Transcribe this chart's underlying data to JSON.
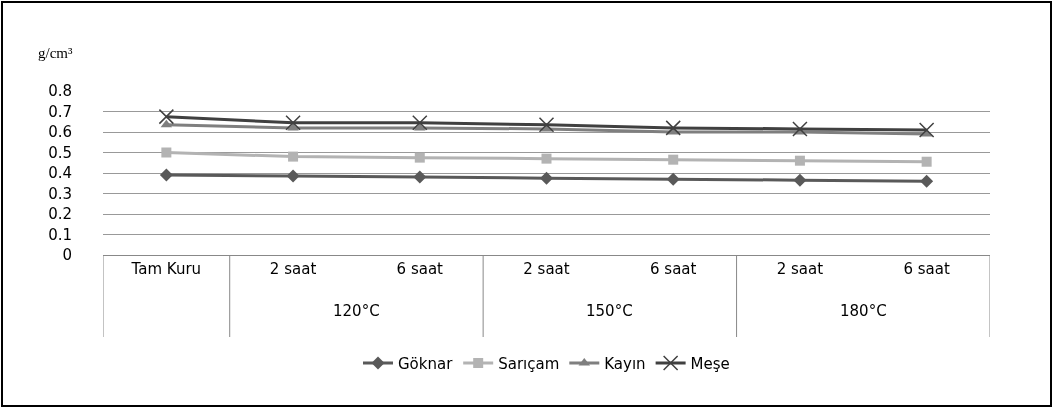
{
  "chart_data": {
    "type": "line",
    "ylabel": "g/cm³",
    "categories": [
      "Tam Kuru",
      "2 saat",
      "6 saat",
      "2 saat",
      "6 saat",
      "2 saat",
      "6 saat"
    ],
    "series": [
      {
        "name": "Göknar",
        "color": "#595959",
        "marker": "diamond",
        "values": [
          0.39,
          0.385,
          0.38,
          0.375,
          0.37,
          0.365,
          0.36
        ]
      },
      {
        "name": "Sarıçam",
        "color": "#b3b3b3",
        "marker": "square",
        "values": [
          0.5,
          0.48,
          0.475,
          0.47,
          0.465,
          0.46,
          0.455
        ]
      },
      {
        "name": "Kayın",
        "color": "#7f7f7f",
        "marker": "triangle",
        "values": [
          0.635,
          0.62,
          0.62,
          0.615,
          0.6,
          0.6,
          0.59
        ]
      },
      {
        "name": "Meşe",
        "color": "#404040",
        "marker": "cross",
        "values": [
          0.675,
          0.645,
          0.645,
          0.635,
          0.62,
          0.615,
          0.61
        ]
      }
    ],
    "annotations": [
      "120°C",
      "150°C",
      "180°C"
    ],
    "ylim": [
      0,
      0.8
    ],
    "yticks": [
      0,
      0.1,
      0.2,
      0.3,
      0.4,
      0.5,
      0.6,
      0.7,
      0.8
    ],
    "grid": "y",
    "legend": "bottom"
  }
}
